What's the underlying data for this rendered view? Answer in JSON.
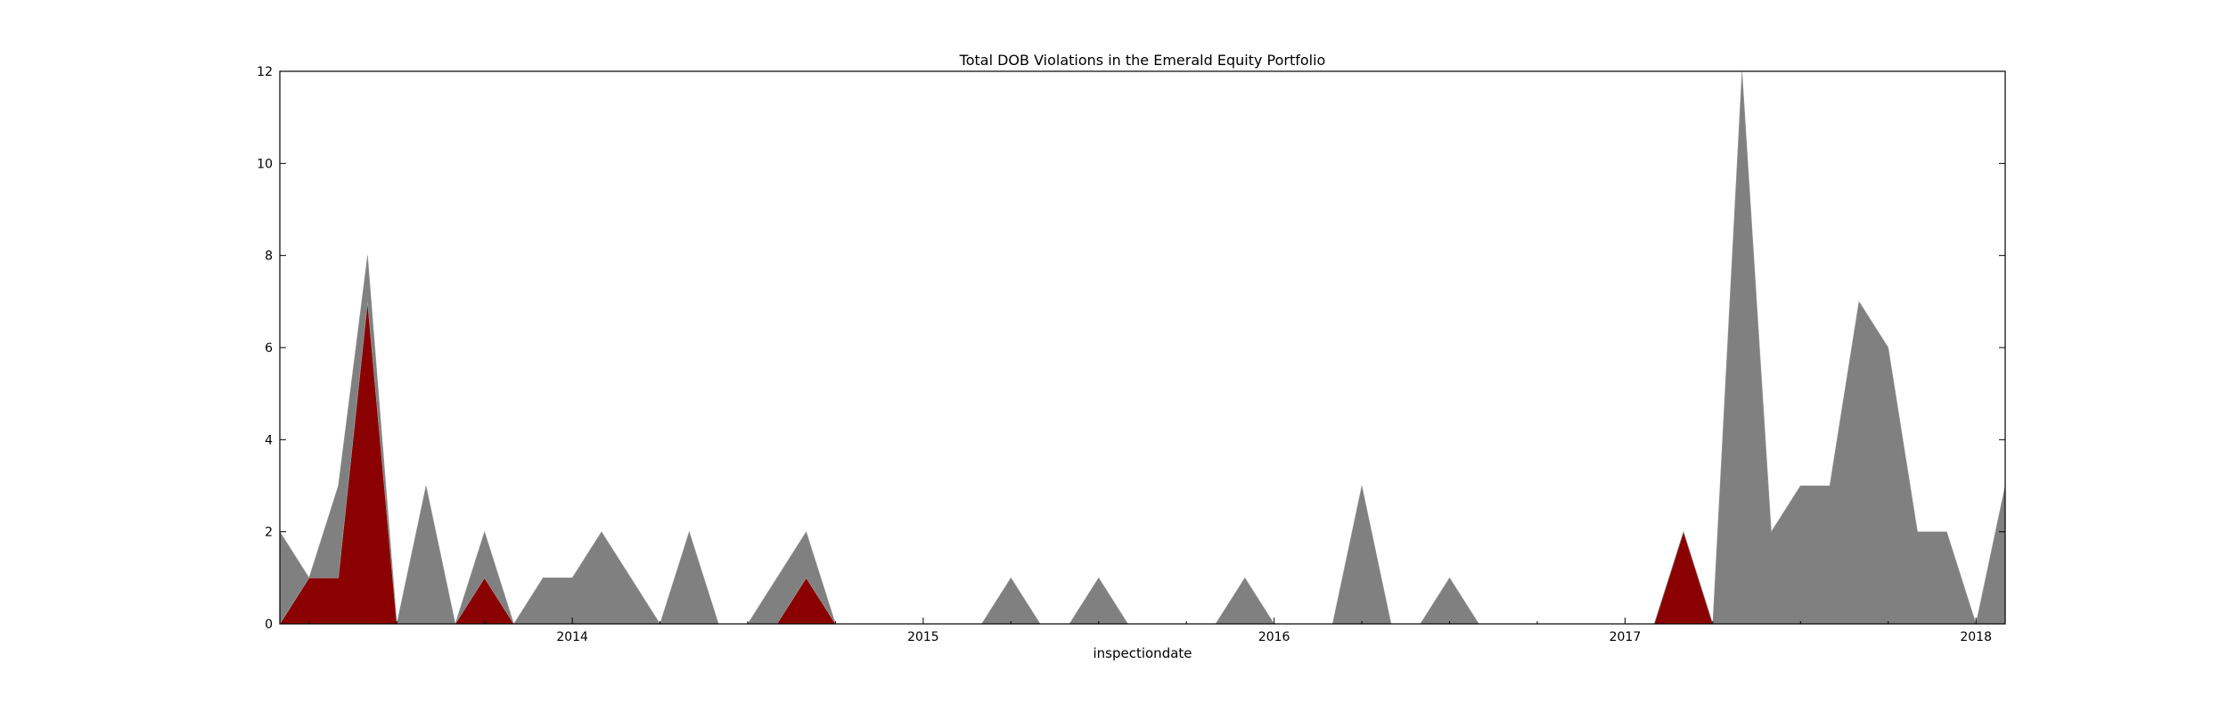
{
  "chart_data": {
    "type": "area",
    "title": "Total DOB Violations in the Emerald Equity Portfolio",
    "xlabel": "inspectiondate",
    "ylabel": "",
    "xlim": [
      "2013-03",
      "2018-02"
    ],
    "ylim": [
      0,
      12
    ],
    "x_ticks": [
      "2014",
      "2015",
      "2016",
      "2017",
      "2018"
    ],
    "y_ticks": [
      "0",
      "2",
      "4",
      "6",
      "8",
      "10",
      "12"
    ],
    "grid": false,
    "legend": "none",
    "stacked": true,
    "x": [
      "2013-03",
      "2013-04",
      "2013-05",
      "2013-06",
      "2013-07",
      "2013-08",
      "2013-09",
      "2013-10",
      "2013-11",
      "2013-12",
      "2014-01",
      "2014-02",
      "2014-03",
      "2014-04",
      "2014-05",
      "2014-06",
      "2014-07",
      "2014-08",
      "2014-09",
      "2014-10",
      "2014-11",
      "2014-12",
      "2015-01",
      "2015-02",
      "2015-03",
      "2015-04",
      "2015-05",
      "2015-06",
      "2015-07",
      "2015-08",
      "2015-09",
      "2015-10",
      "2015-11",
      "2015-12",
      "2016-01",
      "2016-02",
      "2016-03",
      "2016-04",
      "2016-05",
      "2016-06",
      "2016-07",
      "2016-08",
      "2016-09",
      "2016-10",
      "2016-11",
      "2016-12",
      "2017-01",
      "2017-02",
      "2017-03",
      "2017-04",
      "2017-05",
      "2017-06",
      "2017-07",
      "2017-08",
      "2017-09",
      "2017-10",
      "2017-11",
      "2017-12",
      "2018-01",
      "2018-02"
    ],
    "series": [
      {
        "color": "#8b0000",
        "values": [
          0,
          1,
          1,
          7,
          0,
          0,
          0,
          1,
          0,
          0,
          0,
          0,
          0,
          0,
          0,
          0,
          0,
          0,
          1,
          0,
          0,
          0,
          0,
          0,
          0,
          0,
          0,
          0,
          0,
          0,
          0,
          0,
          0,
          0,
          0,
          0,
          0,
          0,
          0,
          0,
          0,
          0,
          0,
          0,
          0,
          0,
          0,
          0,
          2,
          0,
          0,
          0,
          0,
          0,
          0,
          0,
          0,
          0,
          0,
          0
        ]
      },
      {
        "color": "#808080",
        "values": [
          2,
          0,
          2,
          1,
          0,
          3,
          0,
          1,
          0,
          1,
          1,
          2,
          1,
          0,
          2,
          0,
          0,
          1,
          1,
          0,
          0,
          0,
          0,
          0,
          0,
          1,
          0,
          0,
          1,
          0,
          0,
          0,
          0,
          1,
          0,
          0,
          0,
          3,
          0,
          0,
          1,
          0,
          0,
          0,
          0,
          0,
          0,
          0,
          0,
          0,
          12,
          2,
          3,
          3,
          7,
          6,
          2,
          2,
          0,
          3
        ]
      }
    ],
    "colors": {
      "violations_red": "#8b0000",
      "violations_grey": "#808080",
      "seam": "#9a9a9a"
    }
  }
}
